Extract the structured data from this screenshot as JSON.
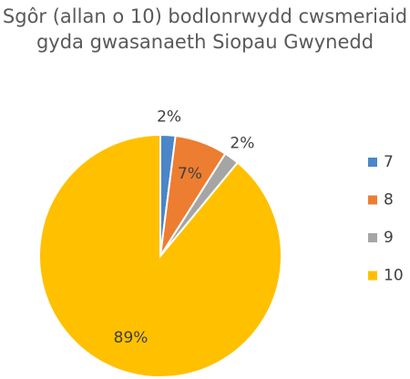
{
  "chart_data": {
    "type": "pie",
    "title": "Sgôr (allan o 10) bodlonrwydd cwsmeriaid gyda gwasanaeth Siopau Gwynedd",
    "categories": [
      "7",
      "8",
      "9",
      "10"
    ],
    "values": [
      2,
      7,
      2,
      89
    ],
    "value_labels": [
      "2%",
      "7%",
      "2%",
      "89%"
    ],
    "colors": [
      "#4a86c8",
      "#ed7d31",
      "#a5a5a5",
      "#ffc000"
    ],
    "legend": "right"
  }
}
